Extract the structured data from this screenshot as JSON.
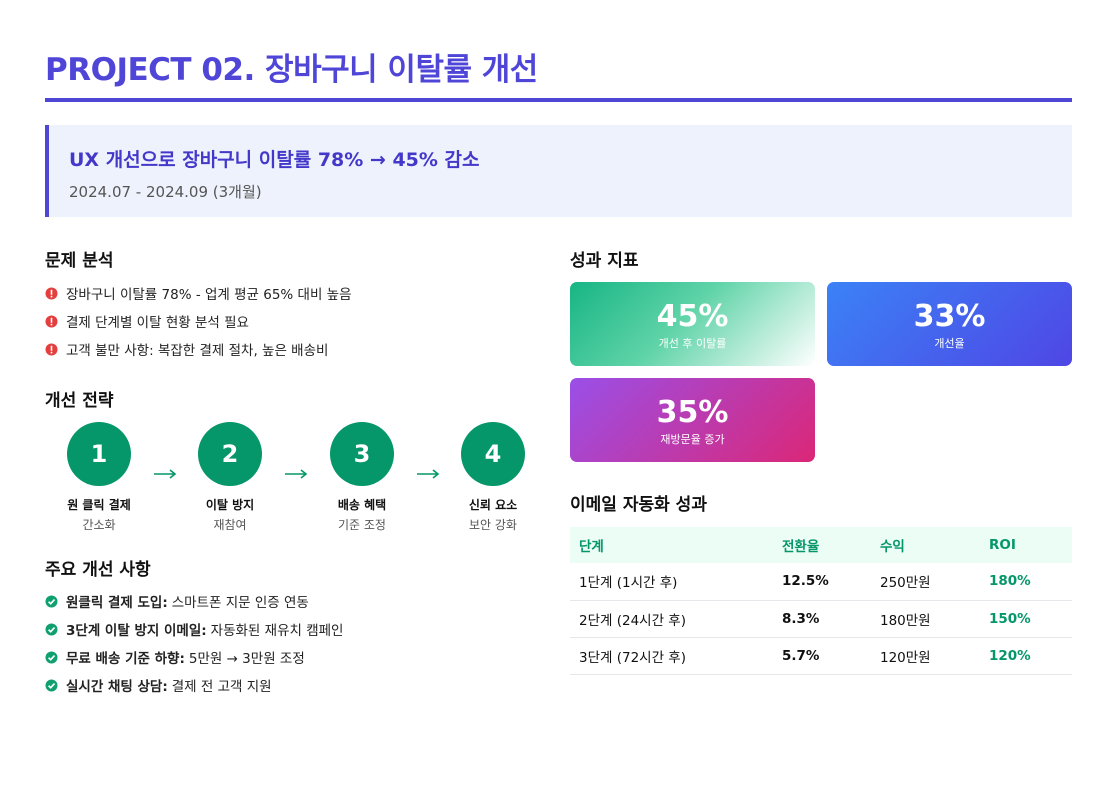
{
  "header": {
    "title": "PROJECT 02. 장바구니 이탈률 개선"
  },
  "summary": {
    "headline": "UX 개선으로 장바구니 이탈률 78% → 45% 감소",
    "period": "2024.07 - 2024.09 (3개월)"
  },
  "problem": {
    "title": "문제 분석",
    "items": [
      "장바구니 이탈률 78% - 업계 평균 65% 대비 높음",
      "결제 단계별 이탈 현황 분석 필요",
      "고객 불만 사항: 복잡한 결제 절차, 높은 배송비"
    ]
  },
  "strategy": {
    "title": "개선 전략",
    "steps": [
      {
        "number": "1",
        "label": "원 클릭 결제",
        "sub": "간소화"
      },
      {
        "number": "2",
        "label": "이탈 방지",
        "sub": "재참여"
      },
      {
        "number": "3",
        "label": "배송 혜택",
        "sub": "기준 조정"
      },
      {
        "number": "4",
        "label": "신뢰 요소",
        "sub": "보안 강화"
      }
    ]
  },
  "improvements": {
    "title": "주요 개선 사항",
    "items": [
      {
        "label": "원클릭 결제 도입:",
        "text": "스마트폰 지문 인증 연동"
      },
      {
        "label": "3단계 이탈 방지 이메일:",
        "text": "자동화된 재유치 캠페인"
      },
      {
        "label": "무료 배송 기준 하향:",
        "text": "5만원 → 3만원 조정"
      },
      {
        "label": "실시간 채팅 상담:",
        "text": "결제 전 고객 지원"
      }
    ]
  },
  "metrics": {
    "title": "성과 지표",
    "cards": [
      {
        "value": "45%",
        "label": "개선 후 이탈률"
      },
      {
        "value": "33%",
        "label": "개선율"
      },
      {
        "value": "35%",
        "label": "재방문율 증가"
      }
    ]
  },
  "email": {
    "title": "이메일 자동화 성과",
    "columns": [
      "단계",
      "전환율",
      "수익",
      "ROI"
    ],
    "rows": [
      [
        "1단계 (1시간 후)",
        "12.5%",
        "250만원",
        "180%"
      ],
      [
        "2단계 (24시간 후)",
        "8.3%",
        "180만원",
        "150%"
      ],
      [
        "3단계 (72시간 후)",
        "5.7%",
        "120만원",
        "120%"
      ]
    ]
  }
}
